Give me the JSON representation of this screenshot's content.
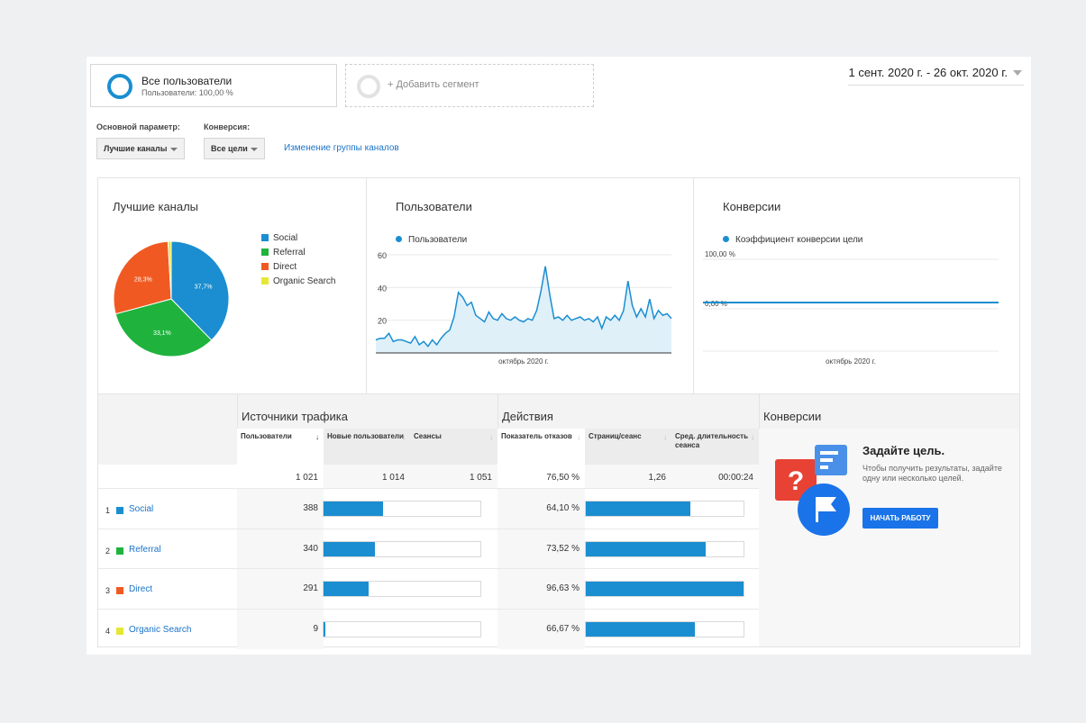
{
  "segments": {
    "all_users_title": "Все пользователи",
    "all_users_sub": "Пользователи: 100,00 %",
    "add_segment": "+ Добавить сегмент"
  },
  "date_range": "1 сент. 2020 г. - 26 окт. 2020 г.",
  "params": {
    "main_label": "Основной параметр:",
    "main_value": "Лучшие каналы",
    "conv_label": "Конверсия:",
    "conv_value": "Все цели",
    "change_group_link": "Изменение группы каналов"
  },
  "colors": {
    "social": "#1a8ed0",
    "referral": "#1fb33e",
    "direct": "#f05a22",
    "organic": "#e5e833",
    "accent": "#1a8ed0",
    "button": "#1a73e8"
  },
  "panels": {
    "channels_title": "Лучшие каналы",
    "users_title": "Пользователи",
    "conversions_title": "Конверсии"
  },
  "chart_data": [
    {
      "type": "pie",
      "title": "Лучшие каналы",
      "categories": [
        "Social",
        "Referral",
        "Direct",
        "Organic Search"
      ],
      "values": [
        37.7,
        33.1,
        28.3,
        0.9
      ],
      "value_labels": [
        "37,7%",
        "33,1%",
        "28,3%",
        ""
      ],
      "legend_position": "right"
    },
    {
      "type": "area",
      "title": "Пользователи",
      "series": [
        {
          "name": "Пользователи",
          "values": [
            8,
            9,
            9,
            12,
            7,
            8,
            8,
            7,
            6,
            10,
            5,
            7,
            4,
            8,
            5,
            9,
            12,
            14,
            22,
            37,
            34,
            29,
            31,
            23,
            21,
            19,
            25,
            21,
            20,
            24,
            21,
            20,
            22,
            20,
            19,
            21,
            20,
            26,
            38,
            53,
            36,
            21,
            22,
            20,
            23,
            20,
            21,
            22,
            20,
            21,
            19,
            22,
            15,
            22,
            20,
            23,
            20,
            26,
            44,
            29,
            22,
            27,
            22,
            33,
            21,
            26,
            23,
            24,
            21
          ]
        }
      ],
      "xlabel": "октябрь 2020 г.",
      "ylim": [
        0,
        60
      ],
      "yticks": [
        "60",
        "40",
        "20"
      ],
      "grid": true
    },
    {
      "type": "line",
      "title": "Конверсии",
      "series": [
        {
          "name": "Коэффициент конверсии цели",
          "values": [
            0,
            0,
            0,
            0,
            0,
            0,
            0,
            0,
            0,
            0
          ]
        }
      ],
      "xlabel": "октябрь 2020 г.",
      "yticks": [
        "100,00 %",
        "0,00 %"
      ],
      "grid": true
    }
  ],
  "table": {
    "groups": [
      "Источники трафика",
      "Действия",
      "Конверсии"
    ],
    "columns": [
      "Пользователи",
      "Новые пользователи",
      "Сеансы",
      "Показатель отказов",
      "Страниц/сеанс",
      "Сред. длительность сеанса"
    ],
    "totals": [
      "1 021",
      "1 014",
      "1 051",
      "76,50 %",
      "1,26",
      "00:00:24"
    ],
    "rows": [
      {
        "num": "1",
        "name": "Social",
        "users": "388",
        "users_bar": 0.38,
        "bounce": "64,10 %",
        "bounce_bar": 0.66
      },
      {
        "num": "2",
        "name": "Referral",
        "users": "340",
        "users_bar": 0.33,
        "bounce": "73,52 %",
        "bounce_bar": 0.76
      },
      {
        "num": "3",
        "name": "Direct",
        "users": "291",
        "users_bar": 0.29,
        "bounce": "96,63 %",
        "bounce_bar": 1.0
      },
      {
        "num": "4",
        "name": "Organic Search",
        "users": "9",
        "users_bar": 0.01,
        "bounce": "66,67 %",
        "bounce_bar": 0.69
      }
    ]
  },
  "goal": {
    "title": "Задайте цель.",
    "text": "Чтобы получить результаты, задайте одну или несколько целей.",
    "button": "НАЧАТЬ РАБОТУ"
  }
}
